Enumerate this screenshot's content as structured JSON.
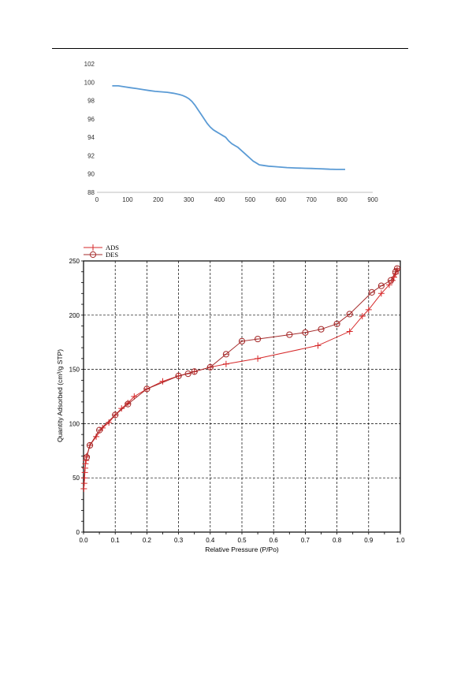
{
  "chart_data": [
    {
      "type": "line",
      "title": "",
      "xlabel": "",
      "ylabel": "",
      "xlim": [
        0,
        900
      ],
      "ylim": [
        88,
        102
      ],
      "x_ticks": [
        "0",
        "100",
        "200",
        "300",
        "400",
        "500",
        "600",
        "700",
        "800",
        "900"
      ],
      "y_ticks": [
        "88",
        "90",
        "92",
        "94",
        "96",
        "98",
        "100",
        "102"
      ],
      "grid": false,
      "series": [
        {
          "color": "#5B9BD5",
          "x": [
            50,
            70,
            90,
            110,
            130,
            150,
            170,
            190,
            210,
            230,
            250,
            270,
            280,
            290,
            300,
            310,
            320,
            330,
            340,
            350,
            360,
            370,
            380,
            390,
            400,
            410,
            420,
            430,
            440,
            450,
            460,
            470,
            480,
            490,
            500,
            510,
            520,
            530,
            540,
            560,
            580,
            600,
            620,
            650,
            680,
            700,
            720,
            740,
            760,
            780,
            800,
            810
          ],
          "y": [
            99.6,
            99.6,
            99.5,
            99.4,
            99.3,
            99.2,
            99.1,
            99.0,
            98.95,
            98.9,
            98.8,
            98.65,
            98.55,
            98.4,
            98.2,
            97.9,
            97.5,
            97.0,
            96.5,
            96.0,
            95.5,
            95.1,
            94.8,
            94.6,
            94.4,
            94.2,
            94.0,
            93.6,
            93.3,
            93.1,
            92.9,
            92.6,
            92.3,
            92.0,
            91.7,
            91.4,
            91.2,
            91.0,
            90.95,
            90.85,
            90.8,
            90.75,
            90.7,
            90.65,
            90.62,
            90.6,
            90.58,
            90.55,
            90.52,
            90.5,
            90.5,
            90.5
          ]
        }
      ]
    },
    {
      "type": "line",
      "title": "",
      "xlabel": "Relative Pressure (P/Po)",
      "ylabel": "Quantity Adsorbed (cm³/g STP)",
      "xlim": [
        0,
        1.0
      ],
      "ylim": [
        0,
        250
      ],
      "x_ticks": [
        "0.0",
        "0.1",
        "0.2",
        "0.3",
        "0.4",
        "0.5",
        "0.6",
        "0.7",
        "0.8",
        "0.9",
        "1.0"
      ],
      "y_ticks": [
        "0",
        "50",
        "100",
        "150",
        "200",
        "250"
      ],
      "grid": true,
      "legend": "top-left",
      "series": [
        {
          "name": "ADS",
          "marker": "plus",
          "color": "#D62728",
          "x": [
            0.001,
            0.002,
            0.003,
            0.004,
            0.005,
            0.006,
            0.008,
            0.01,
            0.02,
            0.04,
            0.06,
            0.08,
            0.1,
            0.12,
            0.14,
            0.16,
            0.2,
            0.25,
            0.3,
            0.35,
            0.4,
            0.45,
            0.55,
            0.74,
            0.84,
            0.88,
            0.9,
            0.94,
            0.965,
            0.975,
            0.98,
            0.985,
            0.99
          ],
          "y": [
            40,
            45,
            50,
            55,
            59,
            63,
            66,
            70,
            80,
            88,
            96,
            101,
            108,
            114,
            119,
            125,
            132,
            139,
            144,
            148,
            152,
            155,
            160,
            172,
            185,
            199,
            205,
            220,
            228,
            232,
            235,
            238,
            242
          ]
        },
        {
          "name": "DES",
          "marker": "circle",
          "color": "#A52A2A",
          "x": [
            0.01,
            0.02,
            0.05,
            0.1,
            0.14,
            0.2,
            0.3,
            0.33,
            0.35,
            0.4,
            0.45,
            0.5,
            0.55,
            0.65,
            0.7,
            0.75,
            0.8,
            0.84,
            0.91,
            0.94,
            0.97,
            0.985,
            0.99
          ],
          "y": [
            69,
            80,
            94,
            108,
            118,
            132,
            144,
            146,
            148,
            152,
            164,
            176,
            178,
            182,
            184,
            187,
            192,
            201,
            221,
            227,
            232,
            240,
            243
          ]
        }
      ]
    }
  ]
}
